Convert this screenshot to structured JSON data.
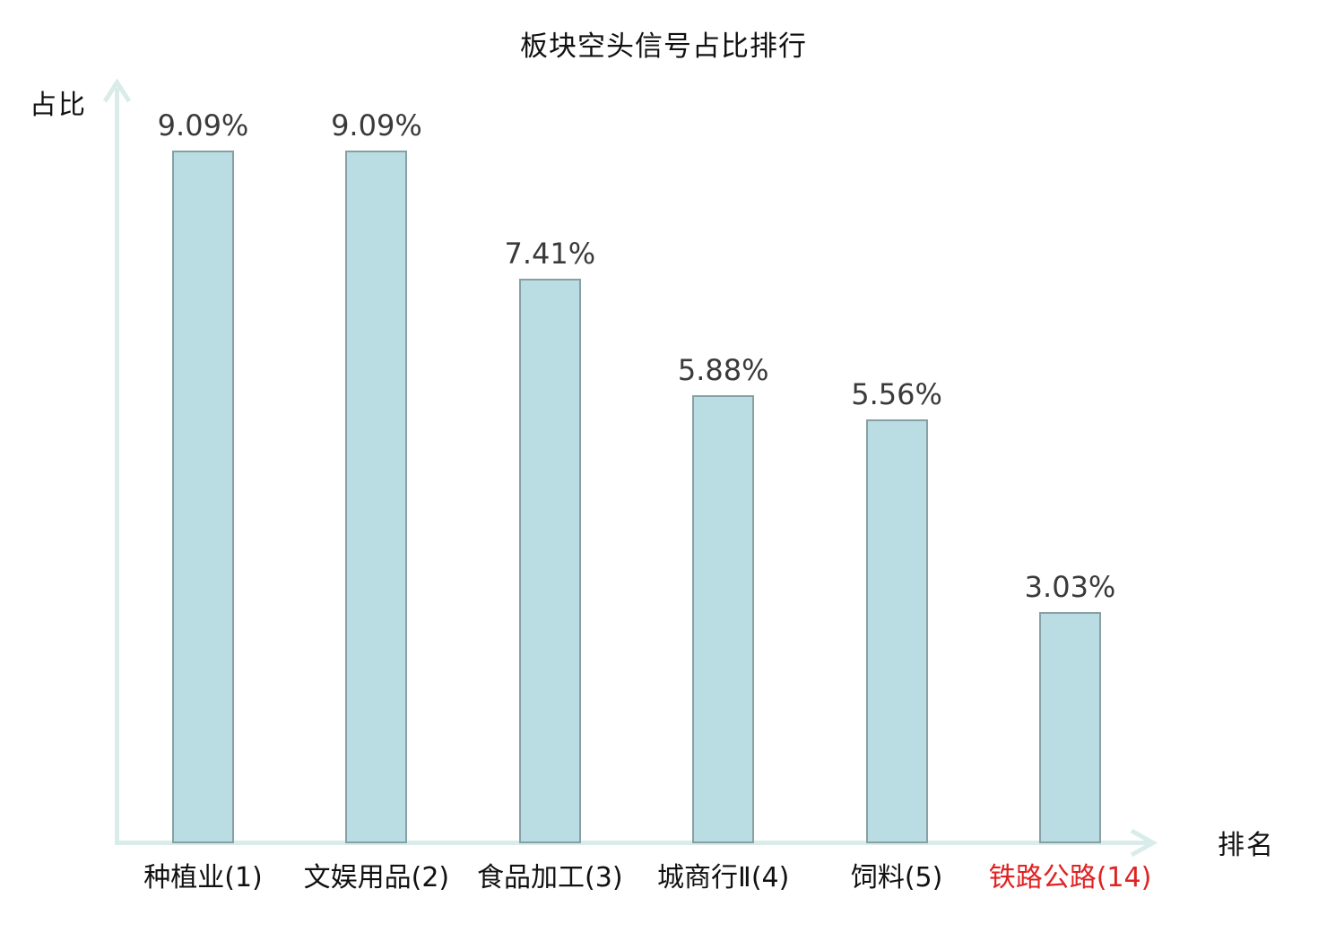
{
  "title": "板块空头信号占比排行",
  "axes": {
    "y_label": "占比",
    "x_label": "排名"
  },
  "colors": {
    "axis": "#d9ece9",
    "bar_fill": "#b9dde2",
    "bar_border": "#87a0a3",
    "value_text": "#3a3a3a",
    "category_text": "#111111",
    "highlight_text": "#e02222"
  },
  "chart_data": {
    "type": "bar",
    "title": "板块空头信号占比排行",
    "xlabel": "排名",
    "ylabel": "占比",
    "categories": [
      "种植业(1)",
      "文娱用品(2)",
      "食品加工(3)",
      "城商行Ⅱ(4)",
      "饲料(5)",
      "铁路公路(14)"
    ],
    "values": [
      9.09,
      9.09,
      7.41,
      5.88,
      5.56,
      3.03
    ],
    "value_labels": [
      "9.09%",
      "9.09%",
      "7.41%",
      "5.88%",
      "5.56%",
      "3.03%"
    ],
    "highlight_index": 5,
    "ylim": [
      0,
      10
    ],
    "grid": false,
    "legend": false
  }
}
